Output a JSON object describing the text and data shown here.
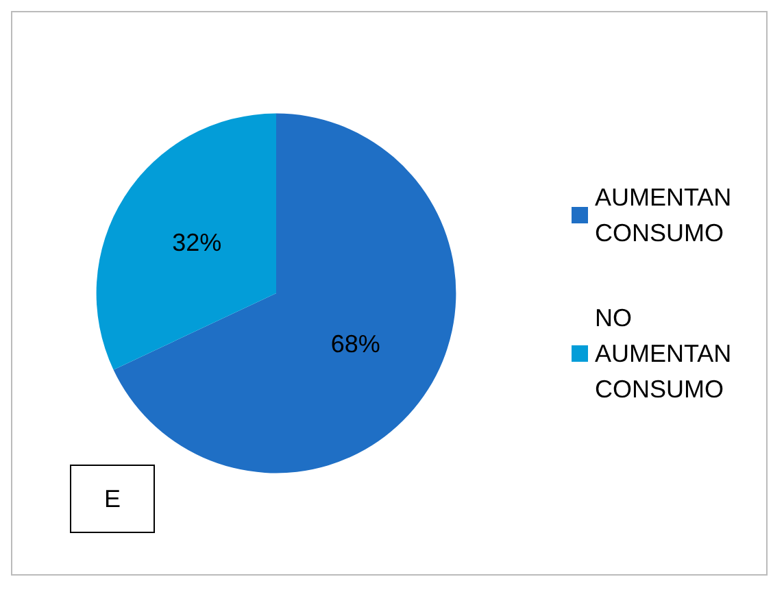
{
  "chart_data": {
    "type": "pie",
    "categories": [
      "AUMENTAN CONSUMO",
      "NO AUMENTAN CONSUMO"
    ],
    "values": [
      68,
      32
    ],
    "colors": [
      "#1f6fc5",
      "#039dd8"
    ],
    "value_labels": [
      "68%",
      "32%"
    ],
    "legend": "right",
    "annotations": [
      "E"
    ]
  }
}
